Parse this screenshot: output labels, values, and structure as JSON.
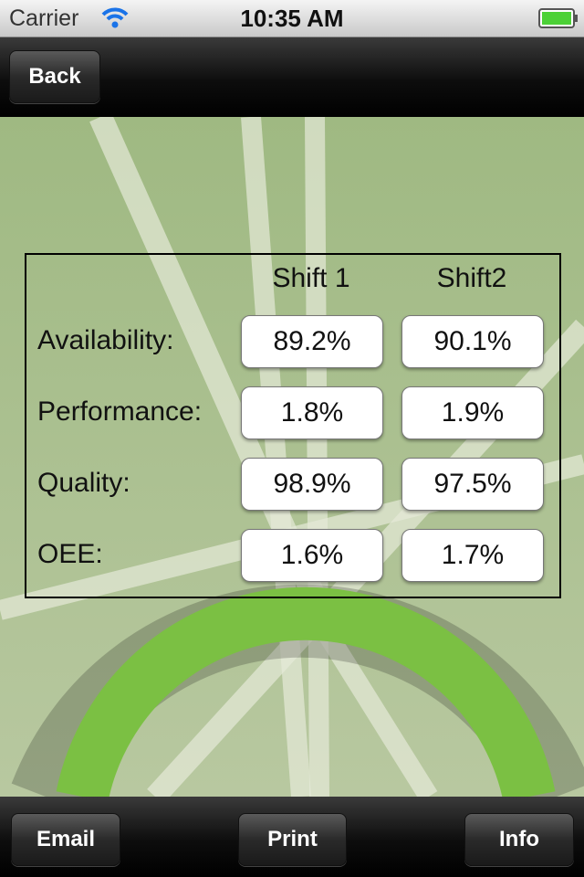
{
  "status_bar": {
    "carrier": "Carrier",
    "time": "10:35 AM"
  },
  "nav_bar": {
    "back_button": "Back"
  },
  "table": {
    "columns": [
      "Shift 1",
      "Shift2"
    ],
    "rows": [
      {
        "label": "Availability:",
        "values": [
          "89.2%",
          "90.1%"
        ]
      },
      {
        "label": "Performance:",
        "values": [
          "1.8%",
          "1.9%"
        ]
      },
      {
        "label": "Quality:",
        "values": [
          "98.9%",
          "97.5%"
        ]
      },
      {
        "label": "OEE:",
        "values": [
          "1.6%",
          "1.7%"
        ]
      }
    ]
  },
  "toolbar": {
    "buttons": [
      "Email",
      "Print",
      "Info"
    ]
  }
}
